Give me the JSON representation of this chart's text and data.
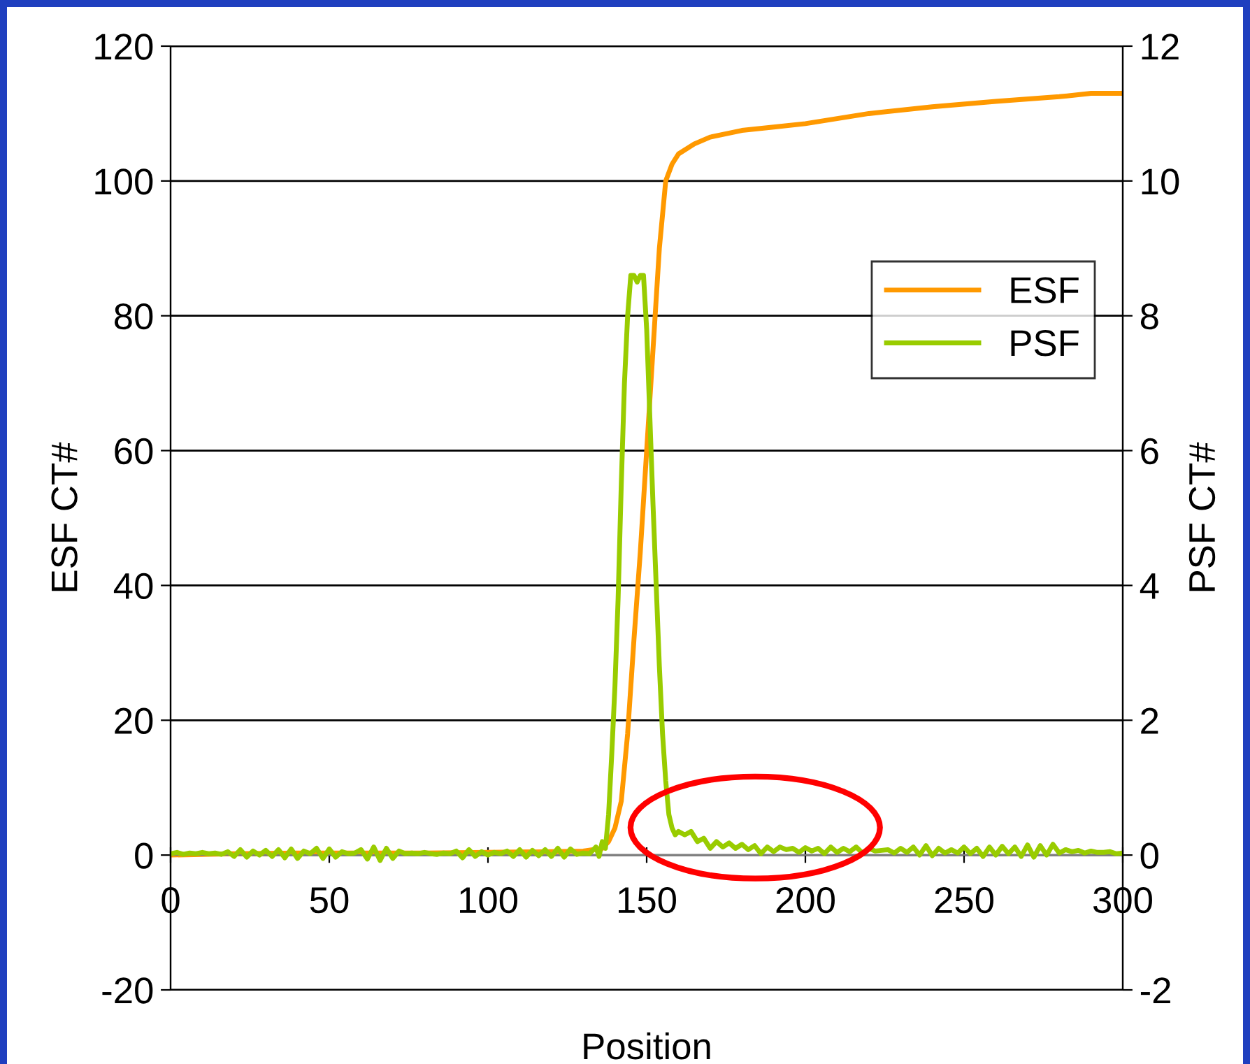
{
  "chart_data": {
    "type": "line",
    "xlabel": "Position",
    "ylabel": "ESF CT#",
    "y2label": "PSF CT#",
    "xlim": [
      0,
      300
    ],
    "xticks": [
      0,
      50,
      100,
      150,
      200,
      250,
      300
    ],
    "ylim": [
      -20,
      120
    ],
    "yticks": [
      -20,
      0,
      20,
      40,
      60,
      80,
      100,
      120
    ],
    "y2lim": [
      -2,
      12
    ],
    "y2ticks": [
      -2,
      0,
      2,
      4,
      6,
      8,
      10,
      12
    ],
    "grid": "y",
    "legend": "right",
    "marker": "none",
    "line_style": "solid",
    "series": [
      {
        "name": "ESF",
        "color": "#ff9900",
        "x": [
          0,
          20,
          40,
          60,
          80,
          100,
          120,
          130,
          136,
          138,
          140,
          142,
          144,
          146,
          148,
          150,
          152,
          154,
          156,
          158,
          160,
          165,
          170,
          180,
          190,
          200,
          220,
          240,
          260,
          280,
          290,
          300
        ],
        "values": [
          0,
          0.2,
          0.3,
          0.3,
          0.3,
          0.4,
          0.5,
          0.6,
          1,
          2,
          4,
          8,
          18,
          32,
          45,
          60,
          75,
          90,
          100,
          102.5,
          104,
          105.5,
          106.5,
          107.5,
          108,
          108.5,
          110,
          111,
          111.8,
          112.5,
          113,
          113
        ]
      },
      {
        "name": "PSF",
        "color": "#99cc00",
        "axis": "y2",
        "x": [
          0,
          2,
          4,
          6,
          8,
          10,
          12,
          14,
          16,
          18,
          20,
          22,
          24,
          26,
          28,
          30,
          32,
          34,
          36,
          38,
          40,
          42,
          44,
          46,
          48,
          50,
          52,
          54,
          56,
          58,
          60,
          62,
          64,
          66,
          68,
          70,
          72,
          74,
          76,
          78,
          80,
          82,
          84,
          86,
          88,
          90,
          92,
          94,
          96,
          98,
          100,
          102,
          104,
          106,
          108,
          110,
          112,
          114,
          116,
          118,
          120,
          122,
          124,
          126,
          128,
          130,
          132,
          134,
          135,
          136,
          137,
          138,
          139,
          140,
          141,
          142,
          143,
          144,
          145,
          146,
          147,
          148,
          149,
          150,
          151,
          152,
          153,
          154,
          155,
          156,
          157,
          158,
          159,
          160,
          162,
          164,
          166,
          168,
          170,
          172,
          174,
          176,
          178,
          180,
          182,
          184,
          186,
          188,
          190,
          192,
          194,
          196,
          198,
          200,
          202,
          204,
          206,
          208,
          210,
          212,
          214,
          216,
          218,
          220,
          222,
          224,
          226,
          228,
          230,
          232,
          234,
          236,
          238,
          240,
          242,
          244,
          246,
          248,
          250,
          252,
          254,
          256,
          258,
          260,
          262,
          264,
          266,
          268,
          270,
          272,
          274,
          276,
          278,
          280,
          282,
          284,
          286,
          288,
          290,
          292,
          294,
          296,
          298,
          300
        ],
        "values": [
          0.02,
          0.04,
          0.01,
          0.03,
          0.02,
          0.04,
          0.02,
          0.03,
          0.01,
          0.05,
          -0.02,
          0.08,
          -0.03,
          0.06,
          0.0,
          0.07,
          -0.02,
          0.08,
          -0.04,
          0.09,
          -0.05,
          0.06,
          0.02,
          0.1,
          -0.05,
          0.09,
          -0.03,
          0.05,
          0.02,
          0.03,
          0.08,
          -0.06,
          0.12,
          -0.08,
          0.1,
          -0.05,
          0.06,
          0.02,
          0.03,
          0.02,
          0.04,
          0.02,
          0.01,
          0.03,
          0.02,
          0.06,
          -0.04,
          0.08,
          -0.02,
          0.05,
          0.0,
          0.04,
          0.02,
          0.06,
          -0.02,
          0.08,
          -0.03,
          0.07,
          -0.01,
          0.08,
          -0.02,
          0.1,
          -0.03,
          0.09,
          0.01,
          0.03,
          0.02,
          0.12,
          -0.02,
          0.2,
          0.1,
          0.6,
          1.5,
          2.5,
          3.8,
          5.5,
          7,
          8,
          8.6,
          8.6,
          8.5,
          8.6,
          8.6,
          7.8,
          6.5,
          5.2,
          4,
          2.8,
          1.8,
          1.1,
          0.6,
          0.4,
          0.3,
          0.35,
          0.3,
          0.35,
          0.2,
          0.25,
          0.1,
          0.2,
          0.12,
          0.18,
          0.1,
          0.16,
          0.08,
          0.14,
          0.02,
          0.12,
          0.05,
          0.12,
          0.08,
          0.1,
          0.04,
          0.11,
          0.06,
          0.1,
          0.02,
          0.12,
          0.04,
          0.1,
          0.05,
          0.12,
          0.03,
          0.1,
          0.06,
          0.07,
          0.08,
          0.03,
          0.1,
          0.04,
          0.12,
          0.0,
          0.14,
          -0.01,
          0.1,
          0.03,
          0.08,
          0.03,
          0.12,
          0.02,
          0.1,
          -0.02,
          0.12,
          0.0,
          0.13,
          0.02,
          0.12,
          -0.02,
          0.15,
          -0.03,
          0.14,
          0.0,
          0.16,
          0.03,
          0.08,
          0.05,
          0.07,
          0.03,
          0.06,
          0.04,
          0.04,
          0.05,
          0.02,
          0.03
        ]
      }
    ]
  }
}
